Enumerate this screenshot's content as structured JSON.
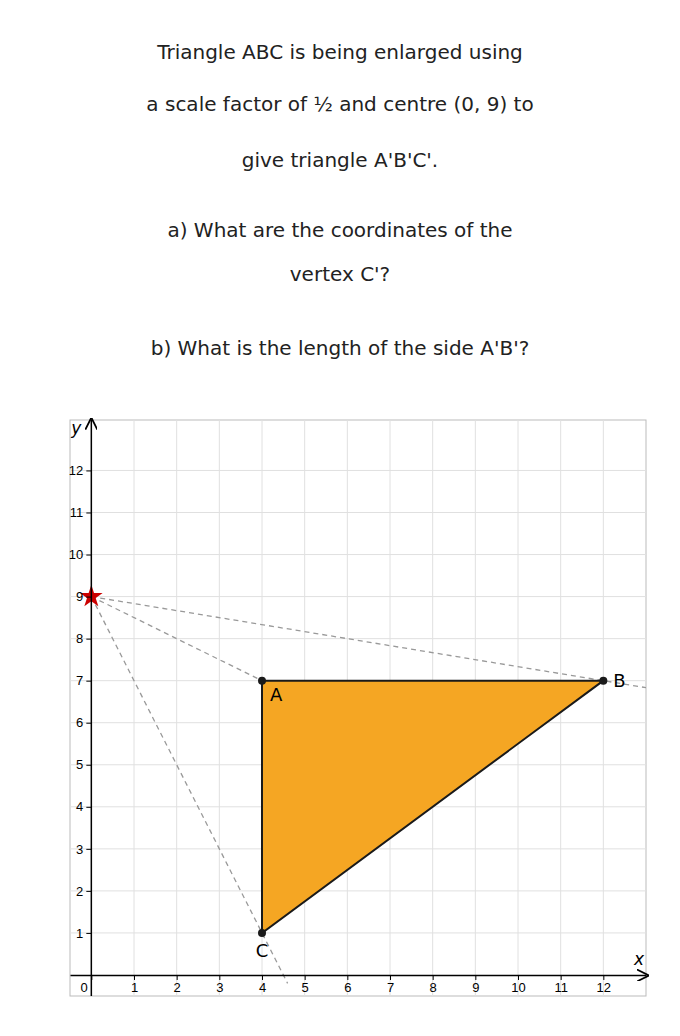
{
  "chart_data": {
    "type": "scatter",
    "annotations": [
      "Triangle ABC is being enlarged using",
      "a scale factor of ½ and centre (0, 9) to",
      "give triangle A'B'C'.",
      "a) What are the coordinates of the",
      "vertex C'?",
      "b) What is the length of the side A'B'?"
    ],
    "x_label": "x",
    "y_label": "y",
    "xlim": [
      -0.5,
      13.0
    ],
    "ylim": [
      -0.5,
      13.2
    ],
    "xticks": [
      0,
      1,
      2,
      3,
      4,
      5,
      6,
      7,
      8,
      9,
      10,
      11,
      12
    ],
    "yticks": [
      1,
      2,
      3,
      4,
      5,
      6,
      7,
      8,
      9,
      10,
      11,
      12
    ],
    "grid": true,
    "series": [
      {
        "type": "polygon",
        "x": [
          4,
          12,
          4
        ],
        "values": [
          7,
          7,
          1
        ],
        "labels": [
          "A",
          "B",
          "C"
        ],
        "color": "#F5A623"
      },
      {
        "type": "scatter",
        "x": [
          0
        ],
        "values": [
          9
        ],
        "marker": "star",
        "color": "#CC0000"
      }
    ]
  }
}
